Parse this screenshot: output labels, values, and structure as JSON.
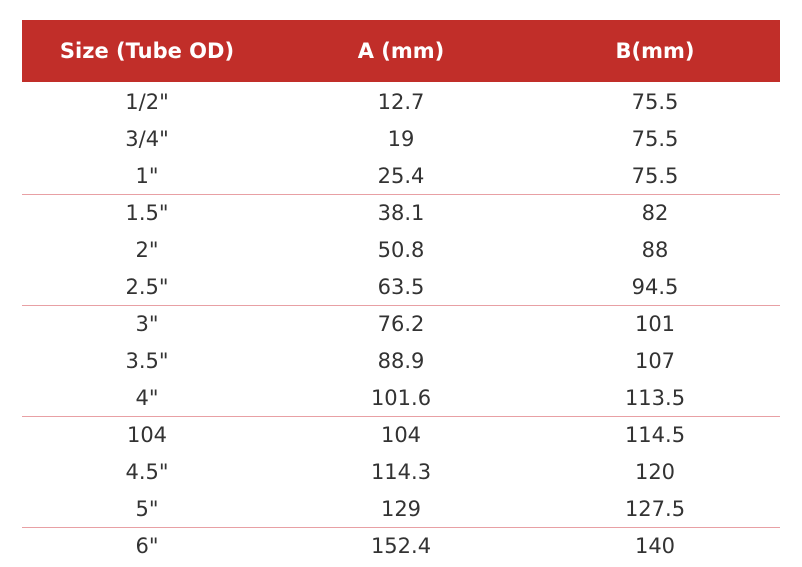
{
  "table": {
    "header": [
      "Size (Tube OD)",
      "A (mm)",
      "B(mm)"
    ],
    "rows": [
      [
        "1/2\"",
        "12.7",
        "75.5"
      ],
      [
        "3/4\"",
        "19",
        "75.5"
      ],
      [
        "1\"",
        "25.4",
        "75.5"
      ],
      [
        "1.5\"",
        "38.1",
        "82"
      ],
      [
        "2\"",
        "50.8",
        "88"
      ],
      [
        "2.5\"",
        "63.5",
        "94.5"
      ],
      [
        "3\"",
        "76.2",
        "101"
      ],
      [
        "3.5\"",
        "88.9",
        "107"
      ],
      [
        "4\"",
        "101.6",
        "113.5"
      ],
      [
        "104",
        "104",
        "114.5"
      ],
      [
        "4.5\"",
        "114.3",
        "120"
      ],
      [
        "5\"",
        "129",
        "127.5"
      ],
      [
        "6\"",
        "152.4",
        "140"
      ]
    ]
  }
}
